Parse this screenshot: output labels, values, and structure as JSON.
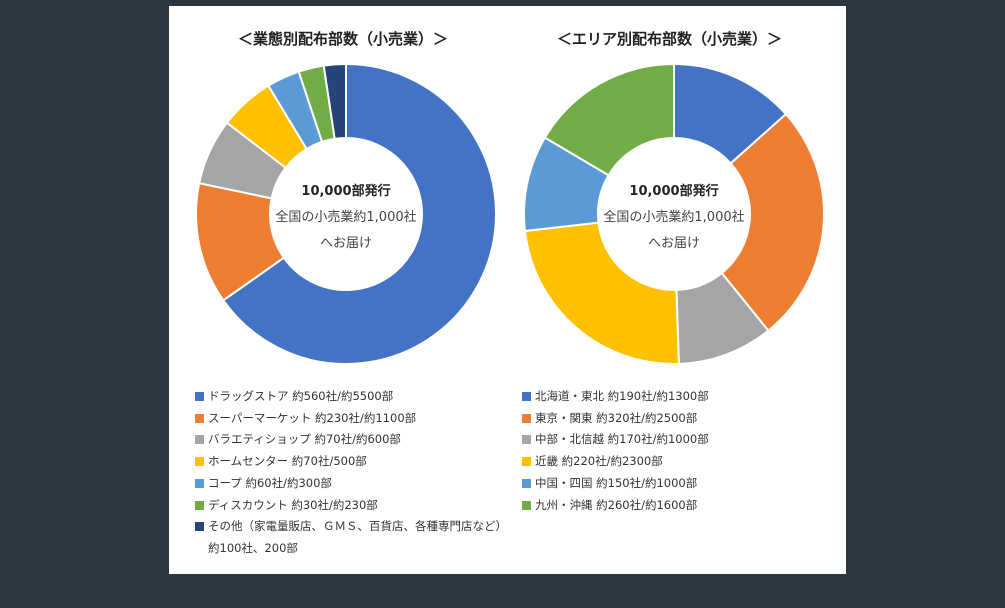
{
  "charts": {
    "left": {
      "title": "＜業態別配布部数（小売業）＞",
      "center_line1": "10,000部発行",
      "center_line2": "全国の小売業約1,000社",
      "center_line3": "へお届け"
    },
    "right": {
      "title": "＜エリア別配布部数（小売業）＞",
      "center_line1": "10,000部発行",
      "center_line2": "全国の小売業約1,000社",
      "center_line3": "へお届け"
    }
  },
  "chart_data": [
    {
      "type": "pie",
      "title": "＜業態別配布部数（小売業）＞",
      "categories": [
        "ドラッグストア",
        "スーパーマーケット",
        "バラエティショップ",
        "ホームセンター",
        "コープ",
        "ディスカウント",
        "その他"
      ],
      "values": [
        5500,
        1100,
        600,
        500,
        300,
        230,
        200
      ],
      "colors": [
        "#4472c4",
        "#ed7d31",
        "#a5a5a5",
        "#ffc000",
        "#5b9bd5",
        "#70ad47",
        "#264478"
      ],
      "legend": [
        "ドラッグストア 約560社/約5500部",
        "スーパーマーケット 約230社/約1100部",
        "バラエティショップ 約70社/約600部",
        "ホームセンター 約70社/500部",
        "コープ 約60社/約300部",
        "ディスカウント 約30社/約230部",
        "その他（家電量販店、ＧＭＳ、百貨店、各種専門店など） 約100社、200部"
      ]
    },
    {
      "type": "pie",
      "title": "＜エリア別配布部数（小売業）＞",
      "categories": [
        "北海道・東北",
        "東京・関東",
        "中部・北信越",
        "近畿",
        "中国・四国",
        "九州・沖縄"
      ],
      "values": [
        1300,
        2500,
        1000,
        2300,
        1000,
        1600
      ],
      "colors": [
        "#4472c4",
        "#ed7d31",
        "#a5a5a5",
        "#ffc000",
        "#5b9bd5",
        "#70ad47"
      ],
      "legend": [
        "北海道・東北 約190社/約1300部",
        "東京・関東 約320社/約2500部",
        "中部・北信越 約170社/約1000部",
        "近畿 約220社/約2300部",
        "中国・四国 約150社/約1000部",
        "九州・沖縄 約260社/約1600部"
      ]
    }
  ]
}
